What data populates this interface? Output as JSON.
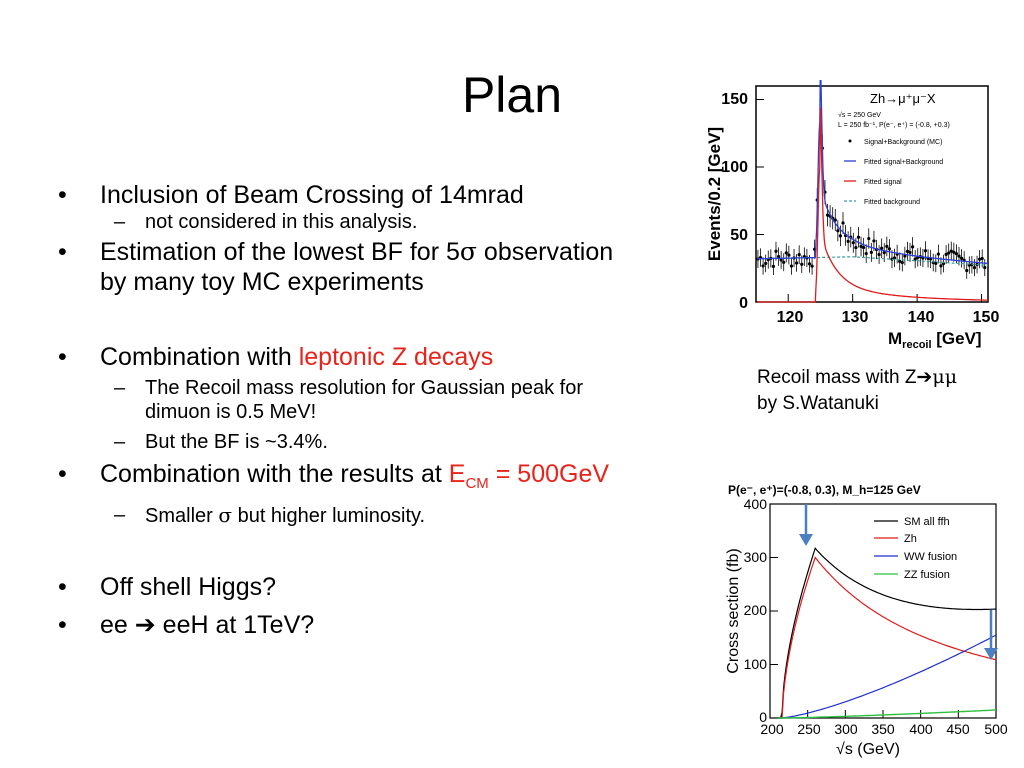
{
  "title": "Plan",
  "bullets": {
    "b1": "Inclusion of Beam Crossing of 14mrad",
    "b1_sub1": "not considered in this analysis.",
    "b2_pre": "Estimation of the lowest BF for 5",
    "b2_sigma": "σ",
    "b2_post": " observation",
    "b2_line2": "by many toy MC experiments",
    "b3_pre": "Combination with ",
    "b3_red": "leptonic Z decays",
    "b3_sub1_l1": "The Recoil mass resolution for Gaussian peak for",
    "b3_sub1_l2": "dimuon is 0.5 MeV!",
    "b3_sub2": "But the BF is ~3.4%.",
    "b4_pre": "Combination with the results at ",
    "b4_e": "E",
    "b4_cm": "CM",
    "b4_post": " = 500GeV",
    "b4_sub1_pre": "Smaller ",
    "b4_sub1_sigma": "σ",
    "b4_sub1_post": " but higher luminosity.",
    "b5": "Off shell Higgs?",
    "b6_pre": "ee ",
    "b6_arrow": "➔",
    "b6_post": " eeH at 1TeV?"
  },
  "caption": {
    "line1_pre": "Recoil mass with Z",
    "line1_arrow": "➔",
    "line1_mumu": "μμ",
    "line2": "by S.Watanuki"
  },
  "recoil_plot": {
    "title": "Zh→μ⁺μ⁻X",
    "ylabel": "Events/0.2 [GeV]",
    "xlabel_main": "M",
    "xlabel_sub": "recoil",
    "xlabel_unit": " [GeV]",
    "info1": "√s = 250 GeV",
    "info2": "L = 250 fb⁻¹, P(e⁻, e⁺) = (-0.8, +0.3)",
    "legend": [
      "Signal+Background (MC)",
      "Fitted signal+Background",
      "Fitted signal",
      "Fitted background"
    ],
    "xticks": [
      "120",
      "130",
      "140",
      "150"
    ],
    "yticks": [
      "0",
      "50",
      "100",
      "150"
    ],
    "colors": {
      "fit_total": "#2b3fd6",
      "fit_signal": "#e01b1b",
      "fit_bkg": "#3b9d9d"
    }
  },
  "xsec_plot": {
    "top_label": "P(e⁻, e⁺)=(-0.8, 0.3), M_h=125 GeV",
    "ylabel": "Cross section (fb)",
    "xlabel": "√s (GeV)",
    "xticks": [
      "200",
      "250",
      "300",
      "350",
      "400",
      "450",
      "500"
    ],
    "yticks": [
      "0",
      "100",
      "200",
      "300",
      "400"
    ],
    "legend": [
      "SM all ffh",
      "Zh",
      "WW fusion",
      "ZZ fusion"
    ],
    "colors": {
      "total": "#000000",
      "zh": "#e01b1b",
      "ww": "#1f2fd0",
      "zz": "#2fbf3f",
      "arrow": "#4a7fc0"
    }
  }
}
